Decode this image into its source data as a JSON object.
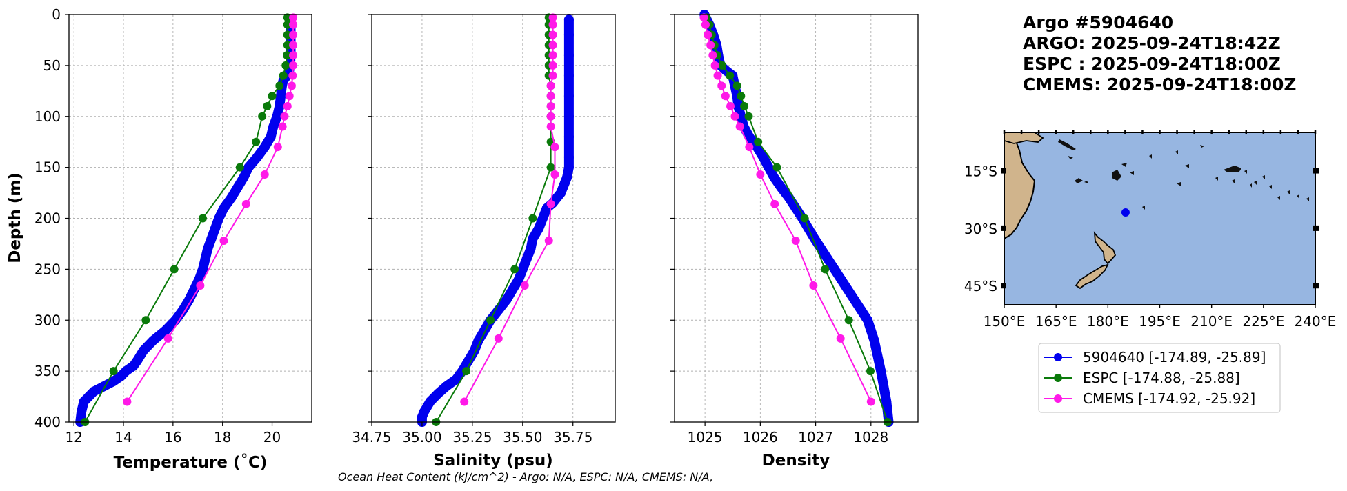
{
  "colors": {
    "argo": "#0000ee",
    "espc": "#0a7a0a",
    "cmems": "#ff19e8",
    "ocean": "#97b6e1",
    "land": "#d0b48c",
    "grid": "#b0b0b0"
  },
  "info": {
    "lines": [
      "Argo #5904640",
      "ARGO: 2025-09-24T18:42Z",
      "ESPC : 2025-09-24T18:00Z",
      "CMEMS: 2025-09-24T18:00Z"
    ]
  },
  "footer": {
    "text": "Ocean Heat Content (kJ/cm^2) - Argo: N/A,  ESPC: N/A,  CMEMS: N/A,"
  },
  "legend": [
    {
      "label": "5904640 [-174.89, -25.89]",
      "color": "#0000ee"
    },
    {
      "label": "ESPC [-174.88, -25.88]",
      "color": "#0a7a0a"
    },
    {
      "label": "CMEMS [-174.92, -25.92]",
      "color": "#ff19e8"
    }
  ],
  "map": {
    "lon_ticks": [
      "150°E",
      "165°E",
      "180°E",
      "195°E",
      "210°E",
      "225°E",
      "240°E"
    ],
    "lat_ticks": [
      "15°S",
      "30°S",
      "45°S"
    ],
    "lon_range": [
      150,
      240
    ],
    "lat_range": [
      -5,
      -50
    ],
    "float_position": {
      "lon": 185.11,
      "lat": -25.89
    }
  },
  "chart_data": [
    {
      "type": "line",
      "xlabel": "Temperature (˚C)",
      "ylabel": "Depth (m)",
      "xlim": [
        11.8,
        21.6
      ],
      "ylim": [
        400,
        0
      ],
      "xticks": [
        "12",
        "14",
        "16",
        "18",
        "20"
      ],
      "xtick_values": [
        12,
        14,
        16,
        18,
        20
      ],
      "yticks": [
        "0",
        "50",
        "100",
        "150",
        "200",
        "250",
        "300",
        "350",
        "400"
      ],
      "ytick_values": [
        0,
        50,
        100,
        150,
        200,
        250,
        300,
        350,
        400
      ],
      "grid": true,
      "series": [
        {
          "name": "5904640",
          "dense": true,
          "x": [
            20.75,
            20.75,
            20.75,
            20.75,
            20.74,
            20.72,
            20.69,
            20.6,
            20.45,
            20.4,
            20.35,
            20.3,
            20.2,
            20.05,
            19.95,
            19.7,
            19.4,
            19.05,
            18.85,
            18.6,
            18.35,
            18.05,
            17.85,
            17.7,
            17.55,
            17.4,
            17.3,
            17.2,
            17.05,
            16.85,
            16.65,
            16.4,
            16.1,
            15.7,
            15.2,
            14.8,
            14.55,
            14.4,
            14.1,
            13.9,
            13.6,
            13.2,
            12.8,
            12.6,
            12.4,
            12.3,
            12.25
          ],
          "y": [
            5,
            15,
            25,
            35,
            45,
            50,
            55,
            60,
            65,
            70,
            80,
            90,
            100,
            110,
            120,
            130,
            140,
            150,
            160,
            170,
            180,
            190,
            200,
            210,
            220,
            230,
            240,
            250,
            260,
            270,
            280,
            290,
            300,
            310,
            320,
            330,
            340,
            345,
            350,
            355,
            360,
            365,
            370,
            375,
            380,
            390,
            400
          ]
        },
        {
          "name": "ESPC",
          "dense": false,
          "x": [
            20.62,
            20.62,
            20.62,
            20.62,
            20.6,
            20.55,
            20.45,
            20.3,
            20.0,
            19.8,
            19.6,
            19.35,
            18.7,
            17.2,
            16.05,
            14.9,
            13.6,
            12.45
          ],
          "y": [
            3,
            10,
            20,
            30,
            40,
            50,
            60,
            70,
            80,
            90,
            100,
            125,
            150,
            200,
            250,
            300,
            350,
            400
          ]
        },
        {
          "name": "CMEMS",
          "dense": false,
          "x": [
            20.85,
            20.85,
            20.85,
            20.85,
            20.85,
            20.85,
            20.83,
            20.79,
            20.7,
            20.62,
            20.5,
            20.42,
            20.23,
            19.7,
            18.95,
            18.05,
            17.1,
            15.8,
            14.15
          ],
          "y": [
            3,
            10,
            20,
            30,
            40,
            50,
            60,
            70,
            80,
            90,
            100,
            110,
            130,
            157,
            186,
            222,
            266,
            318,
            380
          ]
        }
      ]
    },
    {
      "type": "line",
      "xlabel": "Salinity (psu)",
      "ylabel": "",
      "xlim": [
        34.75,
        35.96
      ],
      "ylim": [
        400,
        0
      ],
      "xticks": [
        "34.75",
        "35.00",
        "35.25",
        "35.50",
        "35.75"
      ],
      "xtick_values": [
        34.75,
        35.0,
        35.25,
        35.5,
        35.75
      ],
      "yticks": [],
      "ytick_values": [
        0,
        50,
        100,
        150,
        200,
        250,
        300,
        350,
        400
      ],
      "grid": true,
      "series": [
        {
          "name": "5904640",
          "dense": true,
          "x": [
            35.73,
            35.73,
            35.73,
            35.73,
            35.73,
            35.73,
            35.73,
            35.73,
            35.73,
            35.72,
            35.71,
            35.7,
            35.69,
            35.67,
            35.65,
            35.62,
            35.6,
            35.58,
            35.55,
            35.54,
            35.52,
            35.5,
            35.48,
            35.45,
            35.42,
            35.38,
            35.34,
            35.31,
            35.28,
            35.26,
            35.23,
            35.2,
            35.17,
            35.12,
            35.08,
            35.04,
            35.01,
            35.0,
            35.0
          ],
          "y": [
            5,
            20,
            40,
            60,
            80,
            100,
            120,
            140,
            150,
            160,
            165,
            170,
            175,
            180,
            185,
            190,
            200,
            210,
            220,
            230,
            240,
            250,
            260,
            270,
            280,
            290,
            300,
            310,
            320,
            330,
            340,
            350,
            358,
            365,
            372,
            380,
            390,
            395,
            400
          ]
        },
        {
          "name": "ESPC",
          "dense": false,
          "x": [
            35.63,
            35.63,
            35.63,
            35.63,
            35.63,
            35.63,
            35.63,
            35.64,
            35.64,
            35.64,
            35.64,
            35.64,
            35.64,
            35.55,
            35.46,
            35.34,
            35.22,
            35.07
          ],
          "y": [
            3,
            10,
            20,
            30,
            40,
            50,
            60,
            70,
            80,
            90,
            100,
            125,
            150,
            200,
            250,
            300,
            350,
            400
          ]
        },
        {
          "name": "CMEMS",
          "dense": false,
          "x": [
            35.65,
            35.65,
            35.65,
            35.65,
            35.65,
            35.65,
            35.65,
            35.64,
            35.64,
            35.64,
            35.64,
            35.64,
            35.66,
            35.66,
            35.64,
            35.63,
            35.51,
            35.38,
            35.21
          ],
          "y": [
            3,
            10,
            20,
            30,
            40,
            50,
            60,
            70,
            80,
            90,
            100,
            110,
            130,
            157,
            186,
            222,
            266,
            318,
            380
          ]
        }
      ]
    },
    {
      "type": "line",
      "xlabel": "Density",
      "ylabel": "",
      "xlim": [
        1024.45,
        1028.85
      ],
      "ylim": [
        400,
        0
      ],
      "xticks": [
        "1025",
        "1026",
        "1027",
        "1028"
      ],
      "xtick_values": [
        1025,
        1026,
        1027,
        1028
      ],
      "yticks": [],
      "ytick_values": [
        0,
        50,
        100,
        150,
        200,
        250,
        300,
        350,
        400
      ],
      "grid": true,
      "series": [
        {
          "name": "5904640",
          "dense": true,
          "x": [
            1024.99,
            1025.08,
            1025.15,
            1025.21,
            1025.24,
            1025.28,
            1025.38,
            1025.5,
            1025.54,
            1025.58,
            1025.6,
            1025.65,
            1025.7,
            1025.8,
            1025.94,
            1026.05,
            1026.15,
            1026.25,
            1026.38,
            1026.52,
            1026.64,
            1026.76,
            1026.87,
            1026.98,
            1027.1,
            1027.22,
            1027.34,
            1027.46,
            1027.58,
            1027.7,
            1027.82,
            1027.94,
            1028.06,
            1028.18,
            1028.28,
            1028.32
          ],
          "y": [
            0,
            10,
            20,
            30,
            40,
            50,
            55,
            60,
            70,
            80,
            90,
            100,
            110,
            120,
            130,
            140,
            150,
            160,
            170,
            180,
            190,
            200,
            210,
            220,
            230,
            240,
            250,
            260,
            270,
            280,
            290,
            300,
            320,
            350,
            380,
            400
          ]
        },
        {
          "name": "ESPC",
          "dense": false,
          "x": [
            1025.03,
            1025.08,
            1025.12,
            1025.17,
            1025.22,
            1025.31,
            1025.45,
            1025.58,
            1025.65,
            1025.71,
            1025.79,
            1025.96,
            1026.3,
            1026.8,
            1027.17,
            1027.6,
            1027.99,
            1028.3
          ],
          "y": [
            3,
            10,
            20,
            30,
            40,
            50,
            60,
            70,
            80,
            90,
            100,
            125,
            150,
            200,
            250,
            300,
            350,
            400
          ]
        },
        {
          "name": "CMEMS",
          "dense": false,
          "x": [
            1024.98,
            1025.01,
            1025.05,
            1025.1,
            1025.14,
            1025.18,
            1025.23,
            1025.3,
            1025.37,
            1025.46,
            1025.54,
            1025.63,
            1025.8,
            1026.0,
            1026.26,
            1026.64,
            1026.96,
            1027.45,
            1028.0
          ],
          "y": [
            3,
            10,
            20,
            30,
            40,
            50,
            60,
            70,
            80,
            90,
            100,
            110,
            130,
            157,
            186,
            222,
            266,
            318,
            380
          ]
        }
      ]
    }
  ]
}
